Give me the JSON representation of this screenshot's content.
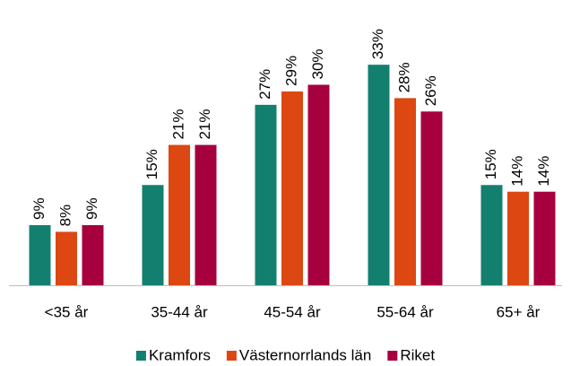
{
  "chart_data": {
    "type": "bar",
    "categories": [
      "<35 år",
      "35-44 år",
      "45-54 år",
      "55-64 år",
      "65+ år"
    ],
    "series": [
      {
        "name": "Kramfors",
        "color": "#13806f",
        "values": [
          9,
          15,
          27,
          33,
          15
        ],
        "value_labels": [
          "9%",
          "15%",
          "27%",
          "33%",
          "15%"
        ]
      },
      {
        "name": "Västernorrlands län",
        "color": "#dc4712",
        "values": [
          8,
          21,
          29,
          28,
          14
        ],
        "value_labels": [
          "8%",
          "21%",
          "29%",
          "28%",
          "14%"
        ]
      },
      {
        "name": "Riket",
        "color": "#a6003f",
        "values": [
          9,
          21,
          30,
          26,
          14
        ],
        "value_labels": [
          "9%",
          "21%",
          "30%",
          "26%",
          "14%"
        ]
      }
    ],
    "legend": "bottom"
  }
}
